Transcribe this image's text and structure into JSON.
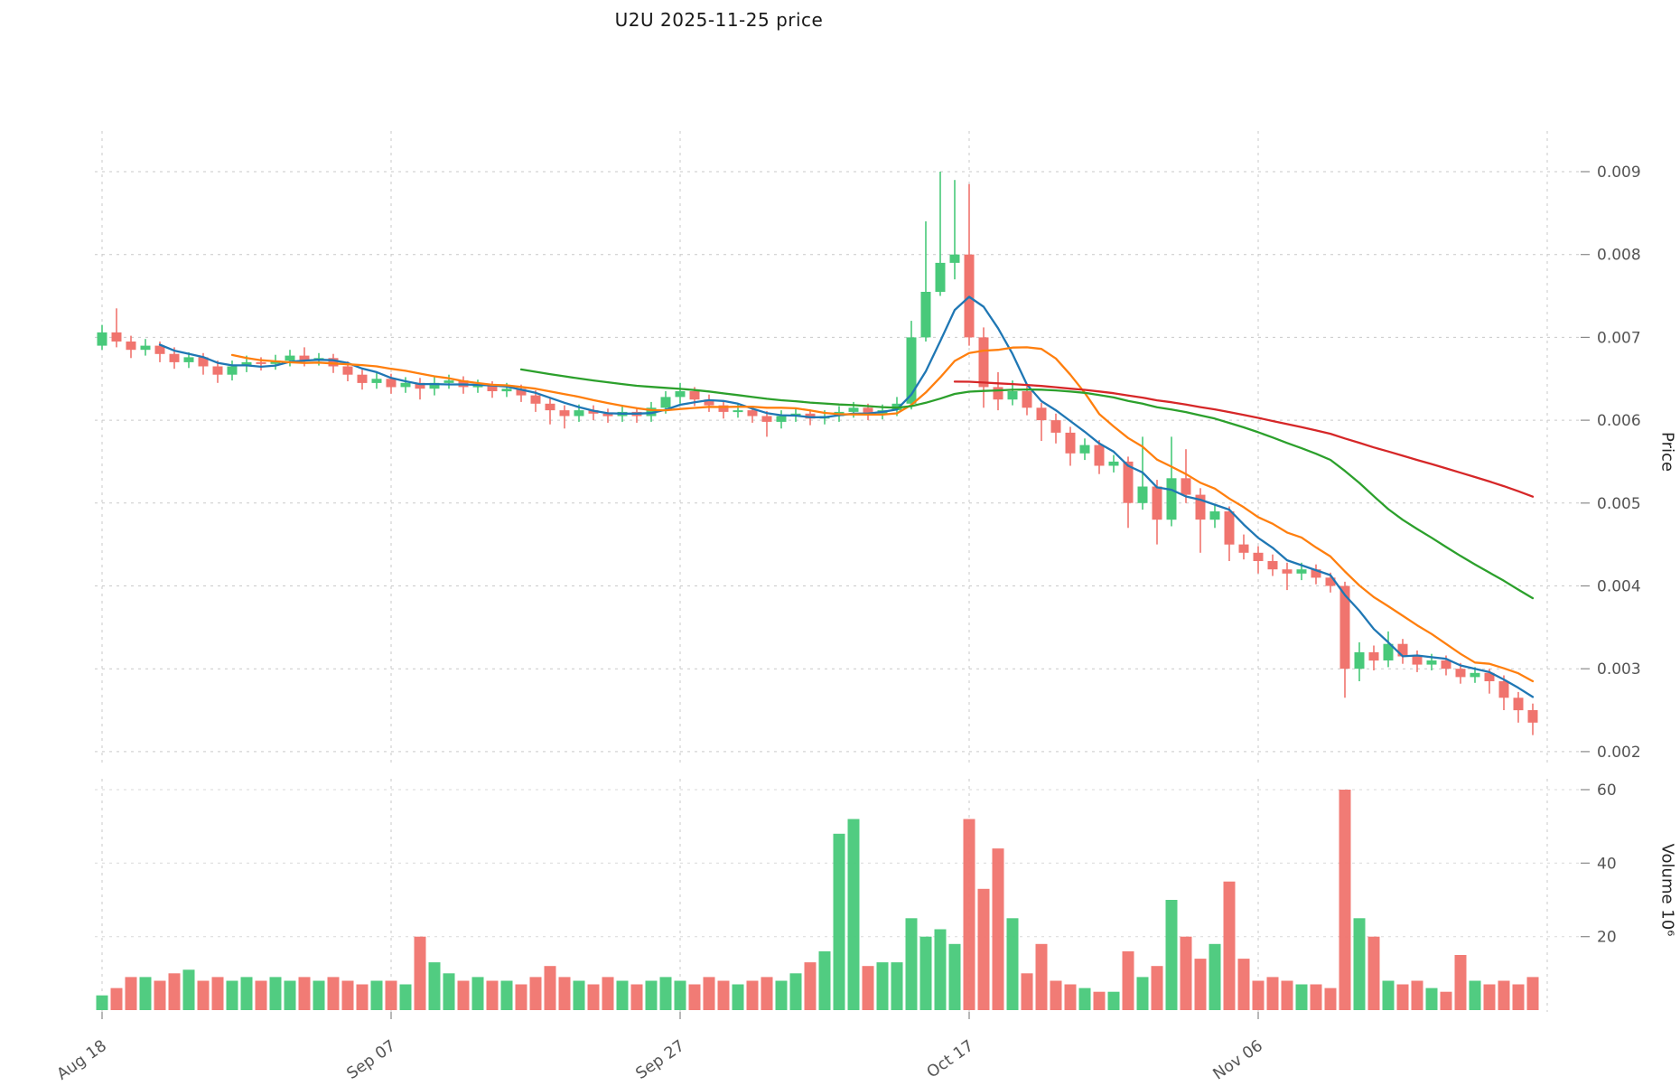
{
  "title": "U2U  2025-11-25  price",
  "axes": {
    "price_label": "Price",
    "volume_label": "Volume  10⁶"
  },
  "chart_data": {
    "type": "candlestick",
    "title": "U2U  2025-11-25  price",
    "ohlc_format": [
      "open",
      "high",
      "low",
      "close",
      "volume_millions"
    ],
    "axis_ranges": {
      "price": [
        0.0019,
        0.0095
      ],
      "volume": [
        0,
        64
      ]
    },
    "grid": true,
    "style": {
      "up_color": "#48c97a",
      "down_color": "#f0746e",
      "grid_color": "#c9c9c9",
      "tick_color": "#555555"
    },
    "price_ticks": [
      {
        "value": 0.002,
        "label": "0.002"
      },
      {
        "value": 0.003,
        "label": "0.003"
      },
      {
        "value": 0.004,
        "label": "0.004"
      },
      {
        "value": 0.005,
        "label": "0.005"
      },
      {
        "value": 0.006,
        "label": "0.006"
      },
      {
        "value": 0.007,
        "label": "0.007"
      },
      {
        "value": 0.008,
        "label": "0.008"
      },
      {
        "value": 0.009,
        "label": "0.009"
      }
    ],
    "volume_ticks": [
      {
        "value": 20,
        "label": "20"
      },
      {
        "value": 40,
        "label": "40"
      },
      {
        "value": 60,
        "label": "60"
      }
    ],
    "x_ticks": [
      {
        "index": 0,
        "label": "Aug 18"
      },
      {
        "index": 20,
        "label": "Sep 07"
      },
      {
        "index": 40,
        "label": "Sep 27"
      },
      {
        "index": 60,
        "label": "Oct 17"
      },
      {
        "index": 80,
        "label": "Nov 06"
      }
    ],
    "moving_averages": [
      {
        "name": "ma5",
        "window": 5,
        "color": "#1f77b4"
      },
      {
        "name": "ma10",
        "window": 10,
        "color": "#ff7f0e"
      },
      {
        "name": "ma30",
        "window": 30,
        "color": "#2ca02c"
      },
      {
        "name": "ma60",
        "window": 60,
        "color": "#d62728"
      }
    ],
    "candles": [
      [
        0.0069,
        0.00715,
        0.00685,
        0.00706,
        4
      ],
      [
        0.00706,
        0.00735,
        0.00688,
        0.00695,
        6
      ],
      [
        0.00695,
        0.00702,
        0.00675,
        0.00685,
        9
      ],
      [
        0.00685,
        0.00698,
        0.00678,
        0.0069,
        9
      ],
      [
        0.0069,
        0.00695,
        0.0067,
        0.0068,
        8
      ],
      [
        0.0068,
        0.00688,
        0.00662,
        0.0067,
        10
      ],
      [
        0.0067,
        0.00682,
        0.00663,
        0.00676,
        11
      ],
      [
        0.00676,
        0.00681,
        0.00655,
        0.00665,
        8
      ],
      [
        0.00665,
        0.00672,
        0.00645,
        0.00655,
        9
      ],
      [
        0.00655,
        0.00672,
        0.00648,
        0.00665,
        8
      ],
      [
        0.00665,
        0.00678,
        0.00658,
        0.0067,
        9
      ],
      [
        0.0067,
        0.00676,
        0.0066,
        0.00668,
        8
      ],
      [
        0.00668,
        0.00679,
        0.00661,
        0.00672,
        9
      ],
      [
        0.00672,
        0.00685,
        0.00665,
        0.00678,
        8
      ],
      [
        0.00678,
        0.00688,
        0.00665,
        0.00672,
        9
      ],
      [
        0.00672,
        0.00681,
        0.00666,
        0.00675,
        8
      ],
      [
        0.00675,
        0.0068,
        0.00657,
        0.00665,
        9
      ],
      [
        0.00665,
        0.00671,
        0.00647,
        0.00655,
        8
      ],
      [
        0.00655,
        0.00661,
        0.00637,
        0.00645,
        7
      ],
      [
        0.00645,
        0.00657,
        0.00638,
        0.0065,
        8
      ],
      [
        0.0065,
        0.00656,
        0.00632,
        0.0064,
        8
      ],
      [
        0.0064,
        0.00652,
        0.00633,
        0.00645,
        7
      ],
      [
        0.00645,
        0.00651,
        0.00625,
        0.00638,
        20
      ],
      [
        0.00638,
        0.00652,
        0.0063,
        0.00645,
        13
      ],
      [
        0.00645,
        0.00655,
        0.00638,
        0.00648,
        10
      ],
      [
        0.00648,
        0.00653,
        0.00632,
        0.0064,
        8
      ],
      [
        0.0064,
        0.00649,
        0.00633,
        0.00642,
        9
      ],
      [
        0.00642,
        0.00647,
        0.00627,
        0.00635,
        8
      ],
      [
        0.00635,
        0.00645,
        0.00628,
        0.00638,
        8
      ],
      [
        0.00638,
        0.00643,
        0.00622,
        0.0063,
        7
      ],
      [
        0.0063,
        0.00636,
        0.0061,
        0.0062,
        9
      ],
      [
        0.0062,
        0.00626,
        0.00595,
        0.00612,
        12
      ],
      [
        0.00612,
        0.00618,
        0.0059,
        0.00605,
        9
      ],
      [
        0.00605,
        0.00619,
        0.00598,
        0.00612,
        8
      ],
      [
        0.00612,
        0.00618,
        0.006,
        0.00608,
        7
      ],
      [
        0.00608,
        0.00614,
        0.00597,
        0.00605,
        9
      ],
      [
        0.00605,
        0.00617,
        0.00598,
        0.0061,
        8
      ],
      [
        0.0061,
        0.00615,
        0.00597,
        0.00605,
        7
      ],
      [
        0.00605,
        0.00622,
        0.00598,
        0.00615,
        8
      ],
      [
        0.00615,
        0.00635,
        0.00608,
        0.00628,
        9
      ],
      [
        0.00628,
        0.00645,
        0.0062,
        0.00635,
        8
      ],
      [
        0.00635,
        0.0064,
        0.00617,
        0.00625,
        7
      ],
      [
        0.00625,
        0.00631,
        0.0061,
        0.00618,
        9
      ],
      [
        0.00618,
        0.00624,
        0.00602,
        0.0061,
        8
      ],
      [
        0.0061,
        0.00619,
        0.00603,
        0.00612,
        7
      ],
      [
        0.00612,
        0.00617,
        0.00597,
        0.00605,
        8
      ],
      [
        0.00605,
        0.00611,
        0.0058,
        0.00598,
        9
      ],
      [
        0.00598,
        0.00612,
        0.0059,
        0.00605,
        8
      ],
      [
        0.00605,
        0.00615,
        0.00598,
        0.00608,
        10
      ],
      [
        0.00608,
        0.00613,
        0.00594,
        0.00602,
        13
      ],
      [
        0.00602,
        0.00612,
        0.00595,
        0.00605,
        16
      ],
      [
        0.00605,
        0.00617,
        0.00598,
        0.0061,
        48
      ],
      [
        0.0061,
        0.00622,
        0.00603,
        0.00615,
        52
      ],
      [
        0.00615,
        0.0062,
        0.006,
        0.00608,
        12
      ],
      [
        0.00608,
        0.00619,
        0.00601,
        0.00612,
        13
      ],
      [
        0.00612,
        0.00628,
        0.00605,
        0.0062,
        13
      ],
      [
        0.0062,
        0.0072,
        0.00613,
        0.007,
        25
      ],
      [
        0.007,
        0.0084,
        0.00695,
        0.00755,
        20
      ],
      [
        0.00755,
        0.009,
        0.0075,
        0.0079,
        22
      ],
      [
        0.0079,
        0.0089,
        0.0077,
        0.008,
        18
      ],
      [
        0.008,
        0.00885,
        0.0069,
        0.007,
        52
      ],
      [
        0.007,
        0.00712,
        0.00615,
        0.0064,
        33
      ],
      [
        0.0064,
        0.00658,
        0.00612,
        0.00625,
        44
      ],
      [
        0.00625,
        0.00648,
        0.00618,
        0.00635,
        25
      ],
      [
        0.00635,
        0.00641,
        0.00606,
        0.00615,
        10
      ],
      [
        0.00615,
        0.00621,
        0.00575,
        0.006,
        18
      ],
      [
        0.006,
        0.00608,
        0.00572,
        0.00585,
        8
      ],
      [
        0.00585,
        0.00592,
        0.00545,
        0.0056,
        7
      ],
      [
        0.0056,
        0.00578,
        0.00552,
        0.0057,
        6
      ],
      [
        0.0057,
        0.00576,
        0.00535,
        0.00545,
        5
      ],
      [
        0.00545,
        0.00558,
        0.00537,
        0.0055,
        5
      ],
      [
        0.0055,
        0.00556,
        0.0047,
        0.005,
        16
      ],
      [
        0.005,
        0.0058,
        0.00492,
        0.0052,
        9
      ],
      [
        0.0052,
        0.00528,
        0.0045,
        0.0048,
        12
      ],
      [
        0.0048,
        0.0058,
        0.00472,
        0.0053,
        30
      ],
      [
        0.0053,
        0.00565,
        0.005,
        0.0051,
        20
      ],
      [
        0.0051,
        0.00518,
        0.0044,
        0.0048,
        14
      ],
      [
        0.0048,
        0.00498,
        0.0047,
        0.0049,
        18
      ],
      [
        0.0049,
        0.00496,
        0.0043,
        0.0045,
        35
      ],
      [
        0.0045,
        0.00462,
        0.00432,
        0.0044,
        14
      ],
      [
        0.0044,
        0.00448,
        0.00415,
        0.0043,
        8
      ],
      [
        0.0043,
        0.00438,
        0.00412,
        0.0042,
        9
      ],
      [
        0.0042,
        0.00428,
        0.00395,
        0.00415,
        8
      ],
      [
        0.00415,
        0.00428,
        0.00407,
        0.0042,
        7
      ],
      [
        0.0042,
        0.00426,
        0.00402,
        0.0041,
        7
      ],
      [
        0.0041,
        0.00416,
        0.00392,
        0.004,
        6
      ],
      [
        0.004,
        0.00405,
        0.00265,
        0.003,
        60
      ],
      [
        0.003,
        0.00332,
        0.00285,
        0.0032,
        25
      ],
      [
        0.0032,
        0.00328,
        0.00298,
        0.0031,
        20
      ],
      [
        0.0031,
        0.00345,
        0.00302,
        0.0033,
        8
      ],
      [
        0.0033,
        0.00336,
        0.00306,
        0.00315,
        7
      ],
      [
        0.00315,
        0.00322,
        0.00296,
        0.00305,
        8
      ],
      [
        0.00305,
        0.00318,
        0.00298,
        0.0031,
        6
      ],
      [
        0.0031,
        0.00316,
        0.00292,
        0.003,
        5
      ],
      [
        0.003,
        0.00307,
        0.00282,
        0.0029,
        15
      ],
      [
        0.0029,
        0.00302,
        0.00283,
        0.00295,
        8
      ],
      [
        0.00295,
        0.003,
        0.0027,
        0.00285,
        7
      ],
      [
        0.00285,
        0.00292,
        0.0025,
        0.00265,
        8
      ],
      [
        0.00265,
        0.00272,
        0.00235,
        0.0025,
        7
      ],
      [
        0.0025,
        0.00258,
        0.0022,
        0.00235,
        9
      ]
    ]
  }
}
